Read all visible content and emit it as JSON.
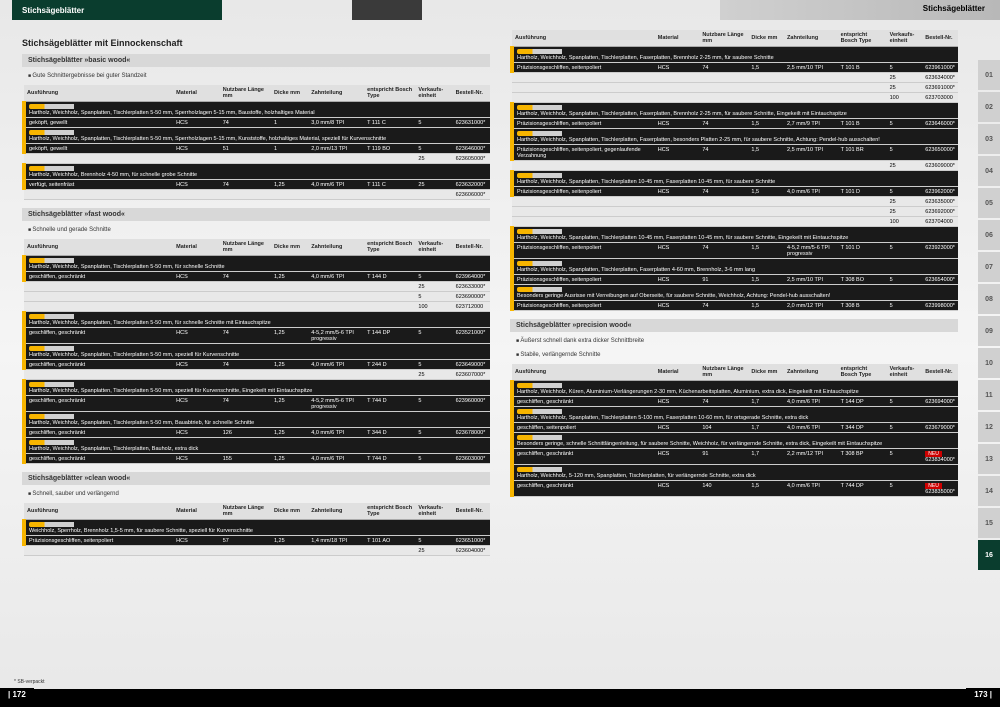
{
  "header": {
    "left": "Stichsägeblätter",
    "right": "Stichsägeblätter"
  },
  "mainTitle": "Stichsägeblätter mit Einnockenschaft",
  "pageLeft": "| 172",
  "pageRight": "173 |",
  "footnote": "* SB-verpackt",
  "cols": {
    "ausf": "Ausführung",
    "mat": "Material",
    "len": "Nutzbare Länge mm",
    "dick": "Dicke mm",
    "zahn": "Zahnteilung",
    "bosch": "entspricht Bosch Type",
    "verk": "Verkaufs-einheit",
    "best": "Bestell-Nr."
  },
  "sections": [
    {
      "title": "Stichsägeblätter »basic wood«",
      "sub": "Gute Schnittergebnisse bei guter Standzeit",
      "groups": [
        {
          "desc": "Hartholz, Weichholz, Spanplatten, Tischlerplatten 5-50 mm, Sperrholzlagen 5-15 mm, Baustoffe, holzhaltiges Material",
          "spec": "geköpft, gewellt",
          "rows": [
            [
              "HCS",
              "74",
              "1",
              "3,0 mm/8 TPI",
              "T 111 C",
              "5",
              "623631000*"
            ]
          ]
        },
        {
          "desc": "Hartholz, Weichholz, Spanplatten, Tischlerplatten 5-50 mm, Sperrholzlagen 5-15 mm, Kunststoffe, holzhaltiges Material, speziell für Kurvenschnitte",
          "spec": "geköpft, gewellt",
          "rows": [
            [
              "HCS",
              "51",
              "1",
              "2,0 mm/13 TPI",
              "T 119 BO",
              "5",
              "623646000*"
            ],
            [
              "",
              "",
              "",
              "",
              "",
              "25",
              "623605000*"
            ]
          ]
        },
        {
          "desc": "Hartholz, Weichholz, Brennholz 4-50 mm, für schnelle grobe Schnitte",
          "spec": "verfügt, seitenfräst",
          "rows": [
            [
              "HCS",
              "74",
              "1,25",
              "4,0 mm/6 TPI",
              "T 111 C",
              "25",
              "623632000*"
            ],
            [
              "",
              "",
              "",
              "",
              "",
              "",
              "623606000*"
            ]
          ]
        }
      ]
    },
    {
      "title": "Stichsägeblätter »fast wood«",
      "sub": "Schnelle und gerade Schnitte",
      "groups": [
        {
          "desc": "Hartholz, Weichholz, Spanplatten, Tischlerplatten 5-50 mm, für schnelle Schnitte",
          "spec": "geschliffen, geschränkt",
          "rows": [
            [
              "HCS",
              "74",
              "1,25",
              "4,0 mm/6 TPI",
              "T 144 D",
              "5",
              "623964000*"
            ],
            [
              "",
              "",
              "",
              "",
              "",
              "25",
              "623633000*"
            ],
            [
              "",
              "",
              "",
              "",
              "",
              "5",
              "623690000*"
            ],
            [
              "",
              "",
              "",
              "",
              "",
              "100",
              "623712000"
            ]
          ]
        },
        {
          "desc": "Hartholz, Weichholz, Spanplatten, Tischlerplatten 5-50 mm, für schnelle Schnitte mit Eintauchspitze",
          "spec": "geschliffen, geschränkt",
          "rows": [
            [
              "HCS",
              "74",
              "1,25",
              "4-5,2 mm/5-6 TPI progressiv",
              "T 144 DP",
              "5",
              "623521000*"
            ]
          ]
        },
        {
          "desc": "Hartholz, Weichholz, Spanplatten, Tischlerplatten 5-50 mm, speziell für Kurvenschnitte",
          "spec": "geschliffen, geschränkt",
          "rows": [
            [
              "HCS",
              "74",
              "1,25",
              "4,0 mm/6 TPI",
              "T 244 D",
              "5",
              "623649000*"
            ],
            [
              "",
              "",
              "",
              "",
              "",
              "25",
              "623607000*"
            ]
          ]
        },
        {
          "desc": "Hartholz, Weichholz, Spanplatten, Tischlerplatten 5-50 mm, speziell für Kurvenschnitte, Eingekeilt mit Eintauchspitze",
          "spec": "geschliffen, geschränkt",
          "rows": [
            [
              "HCS",
              "74",
              "1,25",
              "4-5,2 mm/5-6 TPI progressiv",
              "T 744 D",
              "5",
              "623960000*"
            ]
          ]
        },
        {
          "desc": "Hartholz, Weichholz, Spanplatten, Tischlerplatten 5-50 mm, Bauabtrieb, für schnelle Schnitte",
          "spec": "geschliffen, geschränkt",
          "rows": [
            [
              "HCS",
              "126",
              "1,25",
              "4,0 mm/6 TPI",
              "T 344 D",
              "5",
              "623678000*"
            ]
          ]
        },
        {
          "desc": "Hartholz, Weichholz, Spanplatten, Tischlerplatten, Bauholz, extra dick",
          "spec": "geschliffen, geschränkt",
          "rows": [
            [
              "HCS",
              "155",
              "1,25",
              "4,0 mm/6 TPI",
              "T 744 D",
              "5",
              "623603000*"
            ]
          ]
        }
      ]
    },
    {
      "title": "Stichsägeblätter »clean wood«",
      "sub": "Schnell, sauber und verlängernd",
      "groups": [
        {
          "desc": "Weichholz, Sperrholz, Brennholz 1,5-5 mm, für saubere Schnitte, speziell für Kurvenschnitte",
          "spec": "Präzisionsgeschliffen, seitenpoliert",
          "rows": [
            [
              "HCS",
              "57",
              "1,25",
              "1,4 mm/18 TPI",
              "T 101 AO",
              "5",
              "623651000*"
            ],
            [
              "",
              "",
              "",
              "",
              "",
              "25",
              "623604000*"
            ]
          ]
        }
      ]
    }
  ],
  "sectionsRight": [
    {
      "groups": [
        {
          "desc": "Hartholz, Weichholz, Spanplatten, Tischlerplatten, Faserplatten, Brennholz 2-25 mm, für saubere Schnitte",
          "spec": "Präzisionsgeschliffen, seitenpoliert",
          "rows": [
            [
              "HCS",
              "74",
              "1,5",
              "2,5 mm/10 TPI",
              "T 101 B",
              "5",
              "623961000*"
            ],
            [
              "",
              "",
              "",
              "",
              "",
              "25",
              "623634000*"
            ],
            [
              "",
              "",
              "",
              "",
              "",
              "25",
              "623691000*"
            ],
            [
              "",
              "",
              "",
              "",
              "",
              "100",
              "623703000"
            ]
          ]
        },
        {
          "desc": "Hartholz, Weichholz, Spanplatten, Tischlerplatten, Faserplatten, Brennholz 2-25 mm, für saubere Schnitte, Eingekeilt mit Eintauchspitze",
          "spec": "Präzisionsgeschliffen, seitenpoliert",
          "rows": [
            [
              "HCS",
              "74",
              "1,5",
              "2,7 mm/9 TPI",
              "T 101 B",
              "5",
              "623646000*"
            ]
          ]
        },
        {
          "desc": "Hartholz, Weichholz, Spanplatten, Tischlerplatten, Faserplatten, besonders Platten 2-25 mm, für saubere Schnitte, Achtung: Pendel-hub ausschalten!",
          "spec": "Präzisionsgeschliffen, seitenpoliert, gegenlaufende Verzahnung",
          "rows": [
            [
              "HCS",
              "74",
              "1,5",
              "2,5 mm/10 TPI",
              "T 101 BR",
              "5",
              "623650000*"
            ],
            [
              "",
              "",
              "",
              "",
              "",
              "25",
              "623609000*"
            ]
          ]
        },
        {
          "desc": "Hartholz, Weichholz, Spanplatten, Tischlerplatten 10-45 mm, Faserplatten 10-45 mm, für saubere Schnitte",
          "spec": "Präzisionsgeschliffen, seitenpoliert",
          "rows": [
            [
              "HCS",
              "74",
              "1,5",
              "4,0 mm/6 TPI",
              "T 101 D",
              "5",
              "623962000*"
            ],
            [
              "",
              "",
              "",
              "",
              "",
              "25",
              "623635000*"
            ],
            [
              "",
              "",
              "",
              "",
              "",
              "25",
              "623692000*"
            ],
            [
              "",
              "",
              "",
              "",
              "",
              "100",
              "623704000"
            ]
          ]
        },
        {
          "desc": "Hartholz, Weichholz, Spanplatten, Tischlerplatten 10-45 mm, Faserplatten 10-45 mm, für saubere Schnitte, Eingekeilt mit Eintauchspitze",
          "spec": "Präzisionsgeschliffen, seitenpoliert",
          "rows": [
            [
              "HCS",
              "74",
              "1,5",
              "4-5,2 mm/5-6 TPI progressiv",
              "T 101 D",
              "5",
              "623923000*"
            ]
          ]
        },
        {
          "desc": "Hartholz, Weichholz, Spanplatten, Tischlerplatten, Faserplatten 4-60 mm, Brennholz, 3-6 mm lang",
          "spec": "Präzisionsgeschliffen, seitenpoliert",
          "rows": [
            [
              "HCS",
              "91",
              "1,5",
              "2,5 mm/10 TPI",
              "T 308 BO",
              "5",
              "623654000*"
            ]
          ]
        },
        {
          "desc": "Besonders geringe Ausrisse mit Verreibungen auf Oberseite, für saubere Schnitte, Weichholz, Achtung: Pendel-hub ausschalten!",
          "spec": "Präzisionsgeschliffen, seitenpoliert",
          "rows": [
            [
              "HCS",
              "74",
              "1,5",
              "2,0 mm/12 TPI",
              "T 308 B",
              "5",
              "623998000*"
            ]
          ]
        }
      ]
    },
    {
      "title": "Stichsägeblätter »precision wood«",
      "sub": "Äußerst schnell dank extra dicker Schnittbreite",
      "sub2": "Stabile, verlängernde Schnitte",
      "groups": [
        {
          "desc": "Hartholz, Weichholz, Küren, Aluminium-Verlängerungen 2-30 mm, Küchenarbeitsplatten, Aluminium, extra dick, Eingekeilt mit Eintauchspitze",
          "spec": "geschliffen, geschränkt",
          "rows": [
            [
              "HCS",
              "74",
              "1,7",
              "4,0 mm/6 TPI",
              "T 144 DP",
              "5",
              "623694000*"
            ]
          ]
        },
        {
          "desc": "Hartholz, Weichholz, Spanplatten, Tischlerplatten 5-100 mm, Faserplatten 10-60 mm, für ortsgerade Schnitte, extra dick",
          "spec": "geschliffen, seitenpoliert",
          "rows": [
            [
              "HCS",
              "104",
              "1,7",
              "4,0 mm/6 TPI",
              "T 344 DP",
              "5",
              "623679000*"
            ]
          ]
        },
        {
          "desc": "Besonders geringe, schnelle Schnittlängenleitung, für saubere Schnitte, Weichholz, für verlängernde Schnitte, extra dick, Eingekeilt mit Eintauchspitze",
          "spec": "geschliffen, geschränkt",
          "rows": [
            [
              "HCS",
              "91",
              "1,7",
              "2,2 mm/12 TPI",
              "T 308 BP",
              "5",
              "623834000*"
            ]
          ]
        },
        {
          "desc": "Hartholz, Weichholz, 5-120 mm, Spanplatten, Tischlerplatten, für verlängernde Schnitte, extra dick",
          "spec": "geschliffen, geschränkt",
          "rows": [
            [
              "HCS",
              "140",
              "1,5",
              "4,0 mm/6 TPI",
              "T 744 DP",
              "5",
              "623835000*"
            ]
          ]
        }
      ]
    }
  ],
  "tabs": [
    "01",
    "02",
    "03",
    "04",
    "05",
    "06",
    "07",
    "08",
    "09",
    "10",
    "11",
    "12",
    "13",
    "14",
    "15",
    "16"
  ],
  "activeTab": "16"
}
